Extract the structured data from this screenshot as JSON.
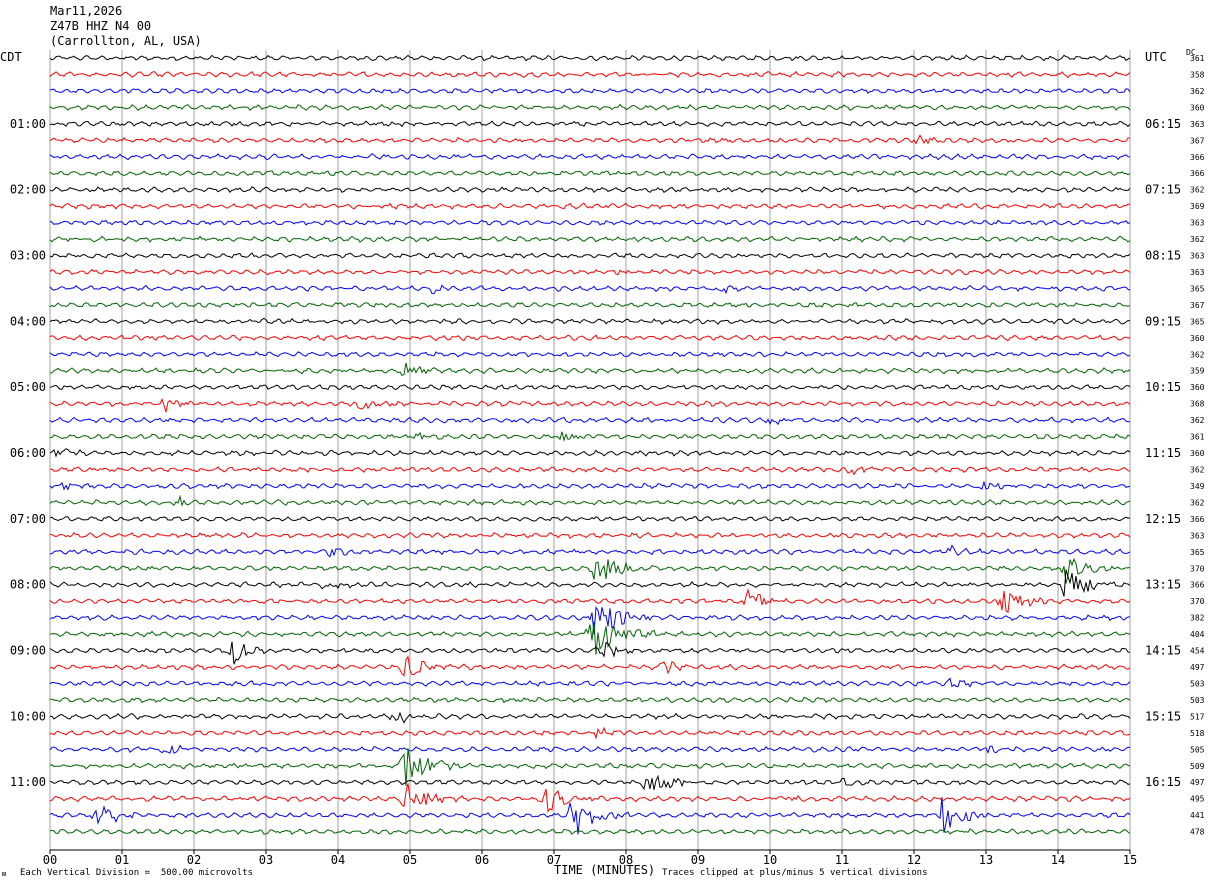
{
  "header": {
    "date": "Mar11,2026",
    "station": "Z47B HHZ N4 00",
    "location": "(Carrollton, AL, USA)"
  },
  "corners": {
    "left_tz": "CDT",
    "right_tz": "UTC",
    "dc_label": "DC"
  },
  "footer": {
    "scale_note": "Each Vertical Division =  500.00 microvolts",
    "clip_note": "Traces clipped at plus/minus 5 vertical divisions",
    "corner_mark": "ᴍ"
  },
  "colors": {
    "trace_cycle": [
      "#000000",
      "#ff0000",
      "#0000ff",
      "#006400"
    ],
    "grid": "#a0a0a0"
  },
  "chart_data": {
    "type": "line",
    "title": "",
    "xlabel": "TIME (MINUTES)",
    "xlim": [
      0,
      15
    ],
    "x_ticks": [
      "00",
      "01",
      "02",
      "03",
      "04",
      "05",
      "06",
      "07",
      "08",
      "09",
      "10",
      "11",
      "12",
      "13",
      "14",
      "15"
    ],
    "left_hour_labels": [
      {
        "row": 4,
        "label": "01:00"
      },
      {
        "row": 8,
        "label": "02:00"
      },
      {
        "row": 12,
        "label": "03:00"
      },
      {
        "row": 16,
        "label": "04:00"
      },
      {
        "row": 20,
        "label": "05:00"
      },
      {
        "row": 24,
        "label": "06:00"
      },
      {
        "row": 28,
        "label": "07:00"
      },
      {
        "row": 32,
        "label": "08:00"
      },
      {
        "row": 36,
        "label": "09:00"
      },
      {
        "row": 40,
        "label": "10:00"
      },
      {
        "row": 44,
        "label": "11:00"
      }
    ],
    "right_hour_labels": [
      {
        "row": 4,
        "label": "06:15"
      },
      {
        "row": 8,
        "label": "07:15"
      },
      {
        "row": 12,
        "label": "08:15"
      },
      {
        "row": 16,
        "label": "09:15"
      },
      {
        "row": 20,
        "label": "10:15"
      },
      {
        "row": 24,
        "label": "11:15"
      },
      {
        "row": 28,
        "label": "12:15"
      },
      {
        "row": 32,
        "label": "13:15"
      },
      {
        "row": 36,
        "label": "14:15"
      },
      {
        "row": 40,
        "label": "15:15"
      },
      {
        "row": 44,
        "label": "16:15"
      }
    ],
    "dc_offsets": [
      361,
      358,
      362,
      360,
      363,
      367,
      366,
      366,
      362,
      369,
      363,
      362,
      363,
      363,
      365,
      367,
      365,
      360,
      362,
      359,
      360,
      368,
      362,
      361,
      360,
      362,
      349,
      362,
      366,
      363,
      365,
      370,
      366,
      370,
      382,
      404,
      454,
      497,
      503,
      503,
      517,
      518,
      505,
      509,
      497,
      495,
      441,
      478
    ],
    "events": [
      {
        "row": 5,
        "t": 12.05,
        "amp": 0.5
      },
      {
        "row": 9,
        "t": 7.35,
        "amp": 0.15
      },
      {
        "row": 13,
        "t": 7.9,
        "amp": 0.4
      },
      {
        "row": 14,
        "t": 5.3,
        "amp": 0.5
      },
      {
        "row": 14,
        "t": 9.3,
        "amp": 0.4
      },
      {
        "row": 19,
        "t": 4.9,
        "amp": 0.9
      },
      {
        "row": 21,
        "t": 1.6,
        "amp": 0.8
      },
      {
        "row": 21,
        "t": 4.3,
        "amp": 0.8
      },
      {
        "row": 22,
        "t": 10.0,
        "amp": 0.5
      },
      {
        "row": 23,
        "t": 5.1,
        "amp": 0.3
      },
      {
        "row": 23,
        "t": 7.1,
        "amp": 0.7
      },
      {
        "row": 24,
        "t": 0.1,
        "amp": 0.4
      },
      {
        "row": 25,
        "t": 11.1,
        "amp": 0.5
      },
      {
        "row": 26,
        "t": 0.2,
        "amp": 0.4
      },
      {
        "row": 26,
        "t": 12.95,
        "amp": 0.6
      },
      {
        "row": 27,
        "t": 1.8,
        "amp": 0.4
      },
      {
        "row": 30,
        "t": 3.9,
        "amp": 0.5
      },
      {
        "row": 30,
        "t": 12.5,
        "amp": 0.5
      },
      {
        "row": 31,
        "t": 7.6,
        "amp": 2.2
      },
      {
        "row": 31,
        "t": 14.1,
        "amp": 1.8
      },
      {
        "row": 32,
        "t": 3.8,
        "amp": 0.6
      },
      {
        "row": 32,
        "t": 14.15,
        "amp": 2.6
      },
      {
        "row": 33,
        "t": 9.7,
        "amp": 1.4
      },
      {
        "row": 33,
        "t": 13.25,
        "amp": 1.8
      },
      {
        "row": 34,
        "t": 7.6,
        "amp": 2.6
      },
      {
        "row": 35,
        "t": 7.55,
        "amp": 3.0
      },
      {
        "row": 36,
        "t": 2.55,
        "amp": 1.4
      },
      {
        "row": 36,
        "t": 7.65,
        "amp": 1.2
      },
      {
        "row": 37,
        "t": 4.95,
        "amp": 1.6
      },
      {
        "row": 37,
        "t": 8.5,
        "amp": 0.8
      },
      {
        "row": 38,
        "t": 12.5,
        "amp": 0.5
      },
      {
        "row": 40,
        "t": 4.8,
        "amp": 0.8
      },
      {
        "row": 41,
        "t": 7.6,
        "amp": 0.6
      },
      {
        "row": 42,
        "t": 1.6,
        "amp": 0.6
      },
      {
        "row": 42,
        "t": 12.95,
        "amp": 0.6
      },
      {
        "row": 43,
        "t": 4.95,
        "amp": 2.4
      },
      {
        "row": 44,
        "t": 8.3,
        "amp": 1.8
      },
      {
        "row": 44,
        "t": 10.95,
        "amp": 0.5
      },
      {
        "row": 45,
        "t": 4.95,
        "amp": 2.2
      },
      {
        "row": 45,
        "t": 6.9,
        "amp": 1.6
      },
      {
        "row": 45,
        "t": 10.0,
        "amp": 0.6
      },
      {
        "row": 46,
        "t": 0.65,
        "amp": 1.8
      },
      {
        "row": 46,
        "t": 7.25,
        "amp": 2.8
      },
      {
        "row": 46,
        "t": 12.4,
        "amp": 2.2
      }
    ]
  }
}
